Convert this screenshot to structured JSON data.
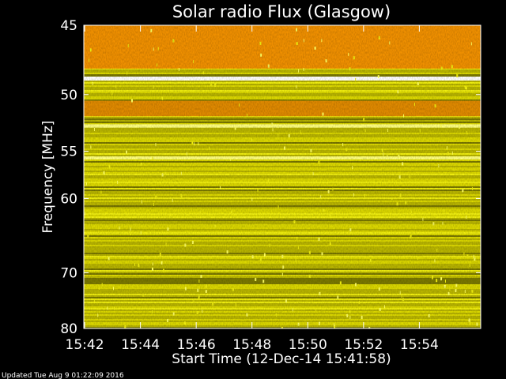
{
  "chart_data": {
    "type": "heatmap",
    "title": "Solar radio Flux (Glasgow)",
    "xlabel": "Start Time (12-Dec-14 15:41:58)",
    "ylabel": "Frequency [MHz]",
    "x_ticks": [
      "15:42",
      "15:44",
      "15:46",
      "15:48",
      "15:50",
      "15:52",
      "15:54"
    ],
    "x_tick_minutes": [
      0,
      2,
      4,
      6,
      8,
      10,
      12
    ],
    "x_range_minutes": [
      -0.03,
      14.2
    ],
    "y_ticks": [
      45,
      50,
      55,
      60,
      70,
      80
    ],
    "ylim": [
      45,
      80
    ],
    "y_scale": "reciprocal",
    "colormap": [
      "#7a7800",
      "#b8b400",
      "#dcd800",
      "#f0ee10",
      "#ffff60",
      "#ff9a00",
      "#ffffff"
    ],
    "bands": [
      {
        "f_low": 45.0,
        "f_high": 48.0,
        "level": "high",
        "color": "#f09000"
      },
      {
        "f_low": 48.6,
        "f_high": 48.9,
        "level": "very high",
        "color": "#ffffff"
      },
      {
        "f_low": 50.5,
        "f_high": 51.8,
        "level": "high",
        "color": "#e08a00"
      },
      {
        "f_low": 52.5,
        "f_high": 52.8,
        "level": "very high",
        "color": "#ffff80"
      },
      {
        "f_low": 55.5,
        "f_high": 55.8,
        "level": "very high",
        "color": "#ffff80"
      }
    ],
    "grid": false
  },
  "footer": {
    "updated": "Updated Tue Aug  9 01:22:09 2016"
  }
}
